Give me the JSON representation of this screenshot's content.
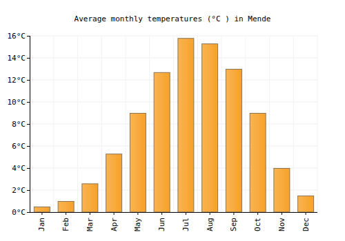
{
  "chart_data": {
    "type": "bar",
    "title": "Average monthly temperatures (°C ) in Mende",
    "categories": [
      "Jan",
      "Feb",
      "Mar",
      "Apr",
      "May",
      "Jun",
      "Jul",
      "Aug",
      "Sep",
      "Oct",
      "Nov",
      "Dec"
    ],
    "values": [
      0.5,
      1.0,
      2.6,
      5.3,
      9.0,
      12.7,
      15.8,
      15.3,
      13.0,
      9.0,
      4.0,
      1.5
    ],
    "color": "#f7a128",
    "ylim": [
      0,
      16
    ],
    "yticks": [
      {
        "value": 0,
        "label": "0°C"
      },
      {
        "value": 2,
        "label": "2°C"
      },
      {
        "value": 4,
        "label": "4°C"
      },
      {
        "value": 6,
        "label": "6°C"
      },
      {
        "value": 8,
        "label": "8°C"
      },
      {
        "value": 10,
        "label": "10°C"
      },
      {
        "value": 12,
        "label": "12°C"
      },
      {
        "value": 14,
        "label": "14°C"
      },
      {
        "value": 16,
        "label": "16°C"
      }
    ],
    "grid": true
  }
}
